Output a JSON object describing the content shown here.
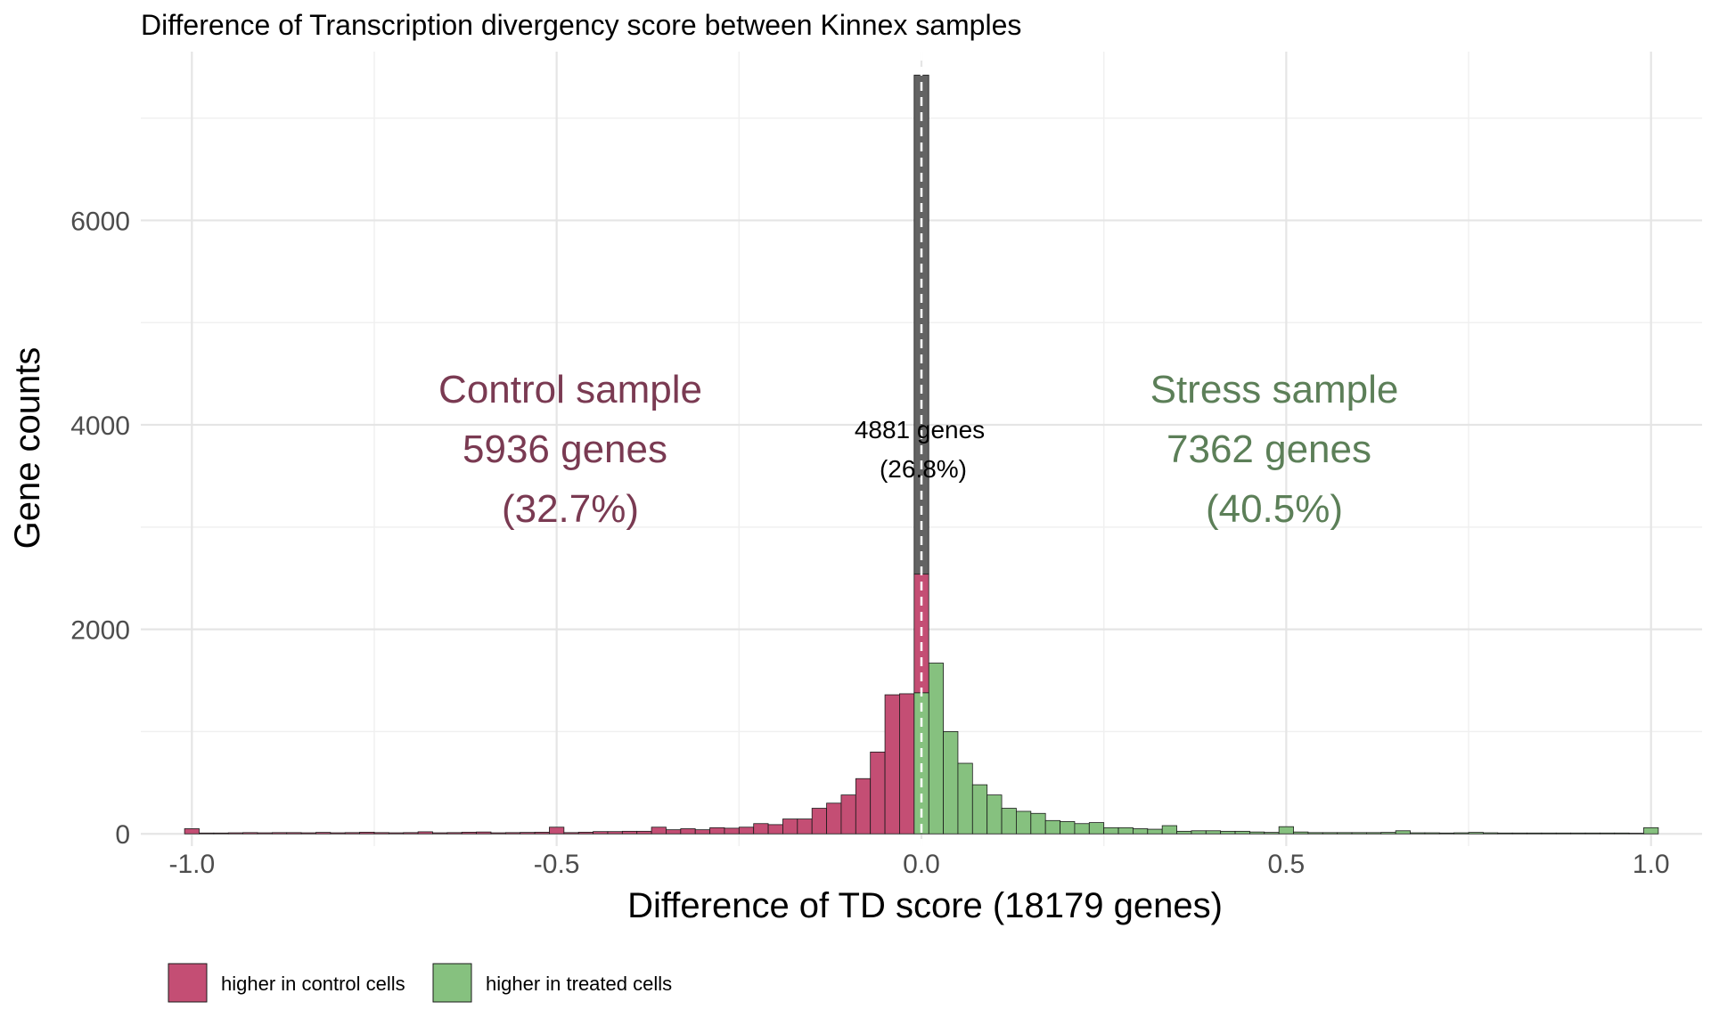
{
  "chart_data": {
    "type": "bar",
    "title": "Difference of Transcription divergency score between Kinnex samples",
    "xlabel": "Difference of TD score  (18179 genes)",
    "ylabel": "Gene counts",
    "xlim": [
      -1.07,
      1.07
    ],
    "ylim": [
      -120,
      7650
    ],
    "x_ticks": [
      -1.0,
      -0.5,
      0.0,
      0.5,
      1.0
    ],
    "x_tick_labels": [
      "-1.0",
      "-0.5",
      "0.0",
      "0.5",
      "1.0"
    ],
    "y_ticks": [
      0,
      2000,
      4000,
      6000
    ],
    "y_tick_labels": [
      "0",
      "2000",
      "4000",
      "6000"
    ],
    "grid": true,
    "bin_width": 0.02,
    "colors": {
      "control": "#c44e74",
      "treated": "#86c17f",
      "zero": "#636363",
      "control_text": "#7a3a52",
      "stress_text": "#5c7f58"
    },
    "series": [
      {
        "name": "higher in control cells",
        "color": "#c44e74",
        "x": [
          -1.0,
          -0.98,
          -0.96,
          -0.94,
          -0.92,
          -0.9,
          -0.88,
          -0.86,
          -0.84,
          -0.82,
          -0.8,
          -0.78,
          -0.76,
          -0.74,
          -0.72,
          -0.7,
          -0.68,
          -0.66,
          -0.64,
          -0.62,
          -0.6,
          -0.58,
          -0.56,
          -0.54,
          -0.52,
          -0.5,
          -0.48,
          -0.46,
          -0.44,
          -0.42,
          -0.4,
          -0.38,
          -0.36,
          -0.34,
          -0.32,
          -0.3,
          -0.28,
          -0.26,
          -0.24,
          -0.22,
          -0.2,
          -0.18,
          -0.16,
          -0.14,
          -0.12,
          -0.1,
          -0.08,
          -0.06,
          -0.04,
          -0.02,
          0.0
        ],
        "values": [
          50,
          8,
          8,
          10,
          12,
          10,
          12,
          12,
          10,
          14,
          10,
          12,
          16,
          12,
          10,
          12,
          20,
          10,
          12,
          16,
          18,
          10,
          12,
          14,
          16,
          65,
          12,
          16,
          22,
          22,
          25,
          25,
          65,
          40,
          50,
          40,
          60,
          55,
          65,
          100,
          90,
          145,
          145,
          250,
          300,
          380,
          540,
          800,
          1360,
          1370,
          2540
        ]
      },
      {
        "name": "higher in treated cells",
        "color": "#86c17f",
        "x": [
          0.0,
          0.02,
          0.04,
          0.06,
          0.08,
          0.1,
          0.12,
          0.14,
          0.16,
          0.18,
          0.2,
          0.22,
          0.24,
          0.26,
          0.28,
          0.3,
          0.32,
          0.34,
          0.36,
          0.38,
          0.4,
          0.42,
          0.44,
          0.46,
          0.48,
          0.5,
          0.52,
          0.54,
          0.56,
          0.58,
          0.6,
          0.62,
          0.64,
          0.66,
          0.68,
          0.7,
          0.72,
          0.74,
          0.76,
          0.78,
          0.8,
          0.82,
          0.84,
          0.86,
          0.88,
          0.9,
          0.92,
          0.94,
          0.96,
          0.98,
          1.0
        ],
        "values": [
          1380,
          1670,
          1000,
          690,
          480,
          380,
          250,
          220,
          200,
          130,
          120,
          100,
          110,
          60,
          60,
          50,
          45,
          80,
          25,
          30,
          30,
          25,
          25,
          18,
          14,
          70,
          18,
          12,
          12,
          12,
          12,
          12,
          14,
          30,
          10,
          10,
          8,
          10,
          14,
          10,
          8,
          8,
          8,
          8,
          8,
          8,
          8,
          8,
          8,
          6,
          60
        ]
      },
      {
        "name": "",
        "color": "#636363",
        "x": [
          0.0
        ],
        "values": [
          4881
        ]
      }
    ],
    "zero_line_x": 0.0,
    "annotations": {
      "control_title": "Control sample",
      "control_count": "5936 genes",
      "control_pct": "(32.7%)",
      "zero_count": "4881 genes",
      "zero_pct": "(26.8%)",
      "stress_title": "Stress sample",
      "stress_count": "7362 genes",
      "stress_pct": "(40.5%)"
    },
    "legend": {
      "placement": "bottom-left",
      "items": [
        {
          "label": "higher in control cells",
          "color": "#c44e74"
        },
        {
          "label": "higher in treated cells",
          "color": "#86c17f"
        }
      ]
    }
  }
}
